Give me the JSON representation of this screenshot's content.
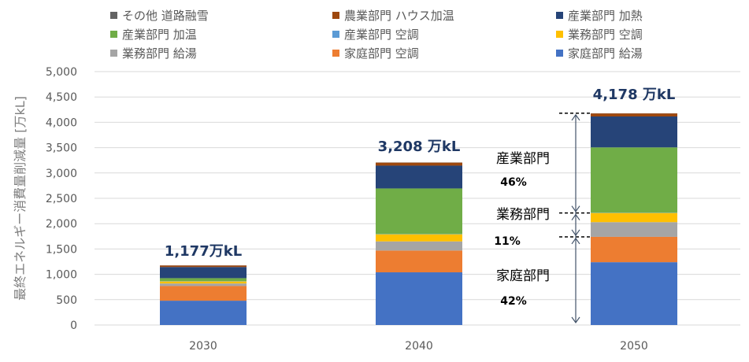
{
  "chart_data": {
    "type": "bar",
    "stacked": true,
    "categories": [
      "2030",
      "2040",
      "2050"
    ],
    "ylabel": "最終エネルギー消費量削減量 [万kL]",
    "ylim": [
      0,
      5000
    ],
    "yticks": [
      "0",
      "500",
      "1,000",
      "1,500",
      "2,000",
      "2,500",
      "3,000",
      "3,500",
      "4,000",
      "4,500",
      "5,000"
    ],
    "grid": true,
    "legend_position": "top",
    "series": [
      {
        "name": "家庭部門 給湯",
        "color": "#4472C4",
        "values": [
          480,
          1040,
          1240
        ]
      },
      {
        "name": "家庭部門 空調",
        "color": "#ED7D31",
        "values": [
          290,
          430,
          500
        ]
      },
      {
        "name": "業務部門 給湯",
        "color": "#A5A5A5",
        "values": [
          50,
          180,
          290
        ]
      },
      {
        "name": "業務部門 空調",
        "color": "#FFC000",
        "values": [
          40,
          140,
          180
        ]
      },
      {
        "name": "産業部門 空調",
        "color": "#5B9BD5",
        "values": [
          5,
          5,
          5
        ]
      },
      {
        "name": "産業部門 加温",
        "color": "#70AD47",
        "values": [
          60,
          900,
          1290
        ]
      },
      {
        "name": "産業部門 加熱",
        "color": "#264478",
        "values": [
          220,
          450,
          610
        ]
      },
      {
        "name": "農業部門 ハウス加温",
        "color": "#9E480E",
        "values": [
          30,
          60,
          60
        ]
      },
      {
        "name": "その他 道路融雪",
        "color": "#636363",
        "values": [
          2,
          3,
          3
        ]
      }
    ],
    "totals": [
      1177,
      3208,
      4178
    ],
    "total_labels": [
      "1,177万kL",
      "3,208 万kL",
      "4,178 万kL"
    ],
    "annotations": [
      {
        "label": "産業部門",
        "share": "46%"
      },
      {
        "label": "業務部門",
        "share": "11%"
      },
      {
        "label": "家庭部門",
        "share": "42%"
      }
    ]
  },
  "legend": [
    {
      "label": "その他 道路融雪",
      "color": "#636363"
    },
    {
      "label": "農業部門 ハウス加温",
      "color": "#9E480E"
    },
    {
      "label": "産業部門 加熱",
      "color": "#264478"
    },
    {
      "label": "産業部門 加温",
      "color": "#70AD47"
    },
    {
      "label": "産業部門 空調",
      "color": "#5B9BD5"
    },
    {
      "label": "業務部門 空調",
      "color": "#FFC000"
    },
    {
      "label": "業務部門 給湯",
      "color": "#A5A5A5"
    },
    {
      "label": "家庭部門 空調",
      "color": "#ED7D31"
    },
    {
      "label": "家庭部門 給湯",
      "color": "#4472C4"
    }
  ]
}
